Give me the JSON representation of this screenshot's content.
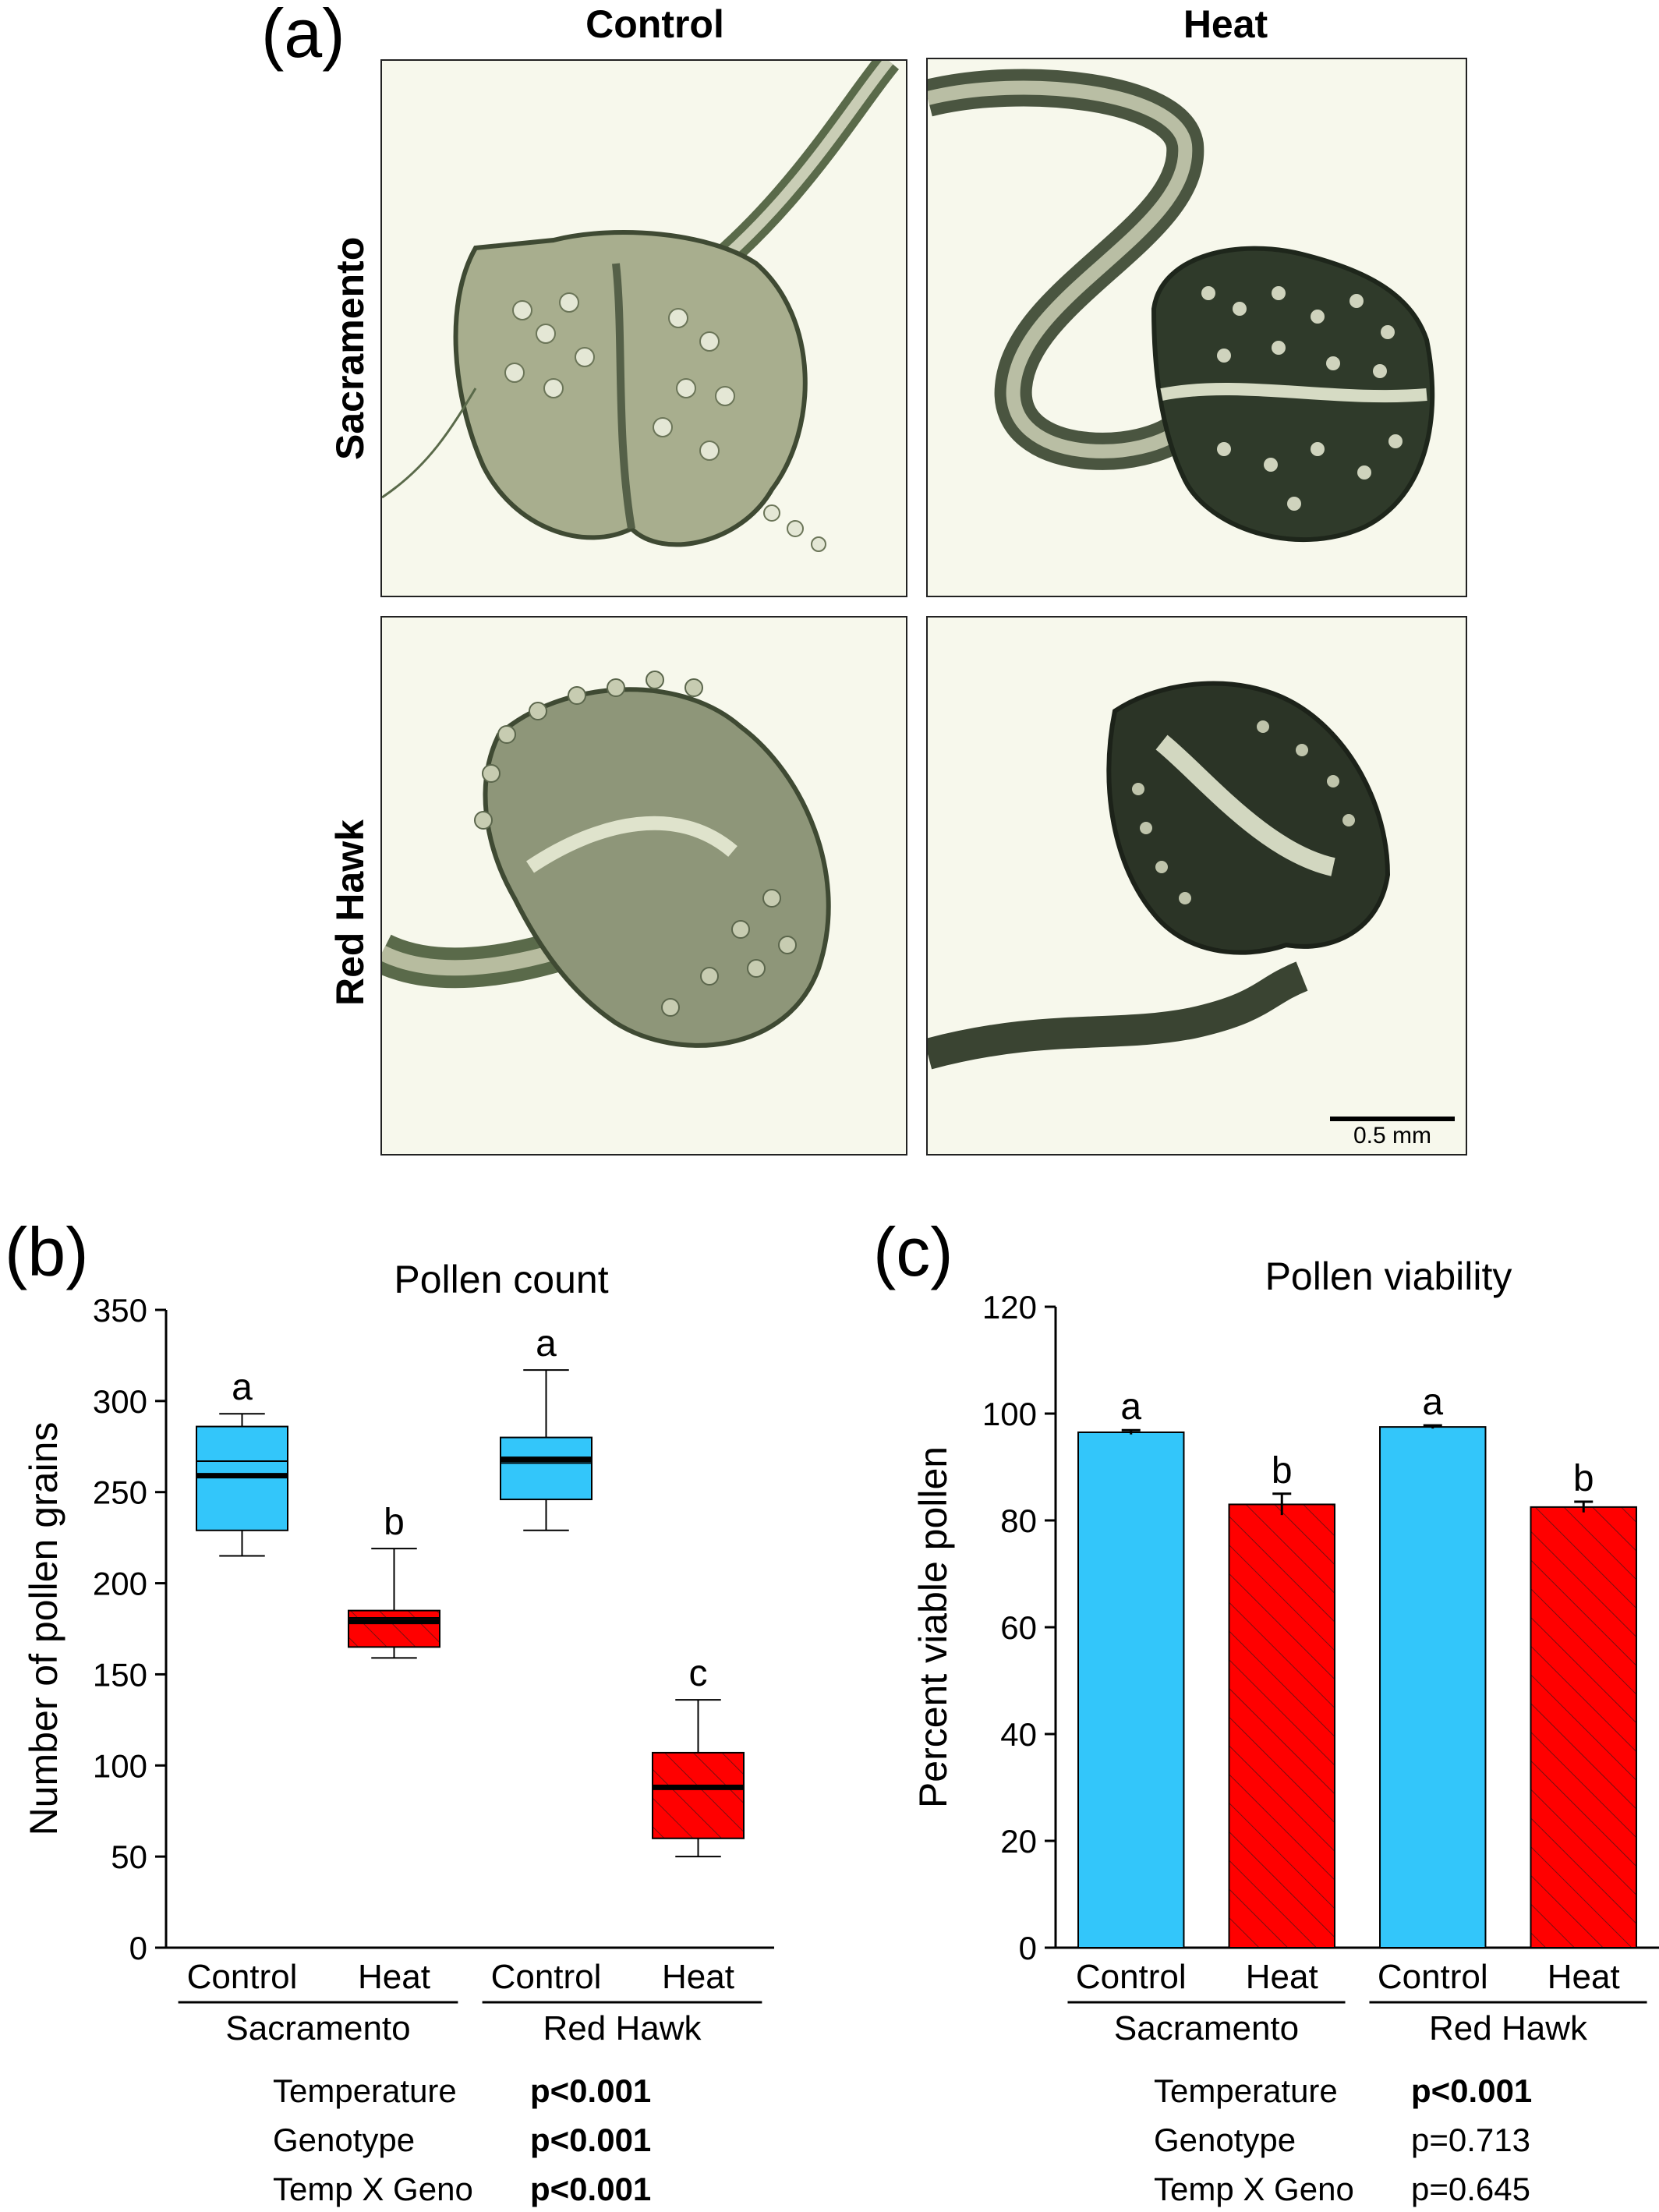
{
  "panel_a": {
    "letter": "(a)",
    "col_headers": [
      "Control",
      "Heat"
    ],
    "row_headers": [
      "Sacramento",
      "Red Hawk"
    ],
    "scale_bar": "0.5 mm"
  },
  "panel_b": {
    "letter": "(b)",
    "stats": [
      {
        "name": "Temperature",
        "value": "p<0.001",
        "bold": true
      },
      {
        "name": "Genotype",
        "value": "p<0.001",
        "bold": true
      },
      {
        "name": "Temp X Geno",
        "value": "p<0.001",
        "bold": true
      }
    ]
  },
  "panel_c": {
    "letter": "(c)",
    "stats": [
      {
        "name": "Temperature",
        "value": "p<0.001",
        "bold": true
      },
      {
        "name": "Genotype",
        "value": "p=0.713",
        "bold": false
      },
      {
        "name": "Temp X Geno",
        "value": "p=0.645",
        "bold": false
      }
    ]
  },
  "colors": {
    "control": "#33c6fa",
    "heat": "#ff0000",
    "axis": "#000000"
  },
  "chart_data": [
    {
      "type": "box",
      "title": "Pollen count",
      "ylabel": "Number of pollen grains",
      "ylim": [
        0,
        350
      ],
      "yticks": [
        0,
        50,
        100,
        150,
        200,
        250,
        300,
        350
      ],
      "categories": [
        "Control",
        "Heat",
        "Control",
        "Heat"
      ],
      "groups": [
        {
          "name": "Sacramento",
          "span": [
            0,
            1
          ]
        },
        {
          "name": "Red Hawk",
          "span": [
            2,
            3
          ]
        }
      ],
      "boxes": [
        {
          "min": 215,
          "q1": 229,
          "median": 259,
          "mean": 267,
          "q3": 286,
          "max": 293,
          "letter": "a",
          "treatment": "control"
        },
        {
          "min": 159,
          "q1": 165,
          "median": 179,
          "mean": 181,
          "q3": 185,
          "max": 219,
          "letter": "b",
          "treatment": "heat"
        },
        {
          "min": 229,
          "q1": 246,
          "median": 268,
          "mean": 266,
          "q3": 280,
          "max": 317,
          "letter": "a",
          "treatment": "control"
        },
        {
          "min": 50,
          "q1": 60,
          "median": 88,
          "mean": 89,
          "q3": 107,
          "max": 136,
          "letter": "c",
          "treatment": "heat"
        }
      ]
    },
    {
      "type": "bar",
      "title": "Pollen viability",
      "ylabel": "Percent viable pollen",
      "ylim": [
        0,
        120
      ],
      "yticks": [
        0,
        20,
        40,
        60,
        80,
        100,
        120
      ],
      "categories": [
        "Control",
        "Heat",
        "Control",
        "Heat"
      ],
      "groups": [
        {
          "name": "Sacramento",
          "span": [
            0,
            1
          ]
        },
        {
          "name": "Red Hawk",
          "span": [
            2,
            3
          ]
        }
      ],
      "values": [
        96.5,
        83,
        97.5,
        82.5
      ],
      "errors": [
        0.4,
        2,
        0.3,
        1
      ],
      "letters": [
        "a",
        "b",
        "a",
        "b"
      ],
      "treatments": [
        "control",
        "heat",
        "control",
        "heat"
      ]
    }
  ]
}
